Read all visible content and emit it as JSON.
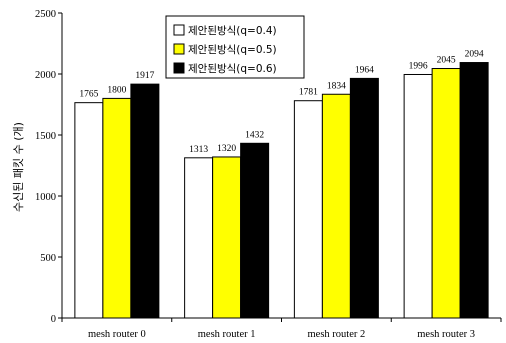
{
  "chart_data": {
    "type": "bar",
    "categories": [
      "mesh router 0",
      "mesh router 1",
      "mesh router 2",
      "mesh router 3"
    ],
    "series": [
      {
        "name": "제안된방식(q=0.4)",
        "color": "#ffffff",
        "values": [
          1765,
          1313,
          1781,
          1996
        ]
      },
      {
        "name": "제안된방식(q=0.5)",
        "color": "#ffff00",
        "values": [
          1800,
          1320,
          1834,
          2045
        ]
      },
      {
        "name": "제안된방식(q=0.6)",
        "color": "#000000",
        "values": [
          1917,
          1432,
          1964,
          2094
        ]
      }
    ],
    "ylabel": "수신된 패킷 수 (개)",
    "xlabel": "",
    "title": "",
    "ylim": [
      0,
      2500
    ],
    "yticks": [
      0,
      500,
      1000,
      1500,
      2000,
      2500
    ],
    "grid": false,
    "legend_position": "top-center"
  }
}
